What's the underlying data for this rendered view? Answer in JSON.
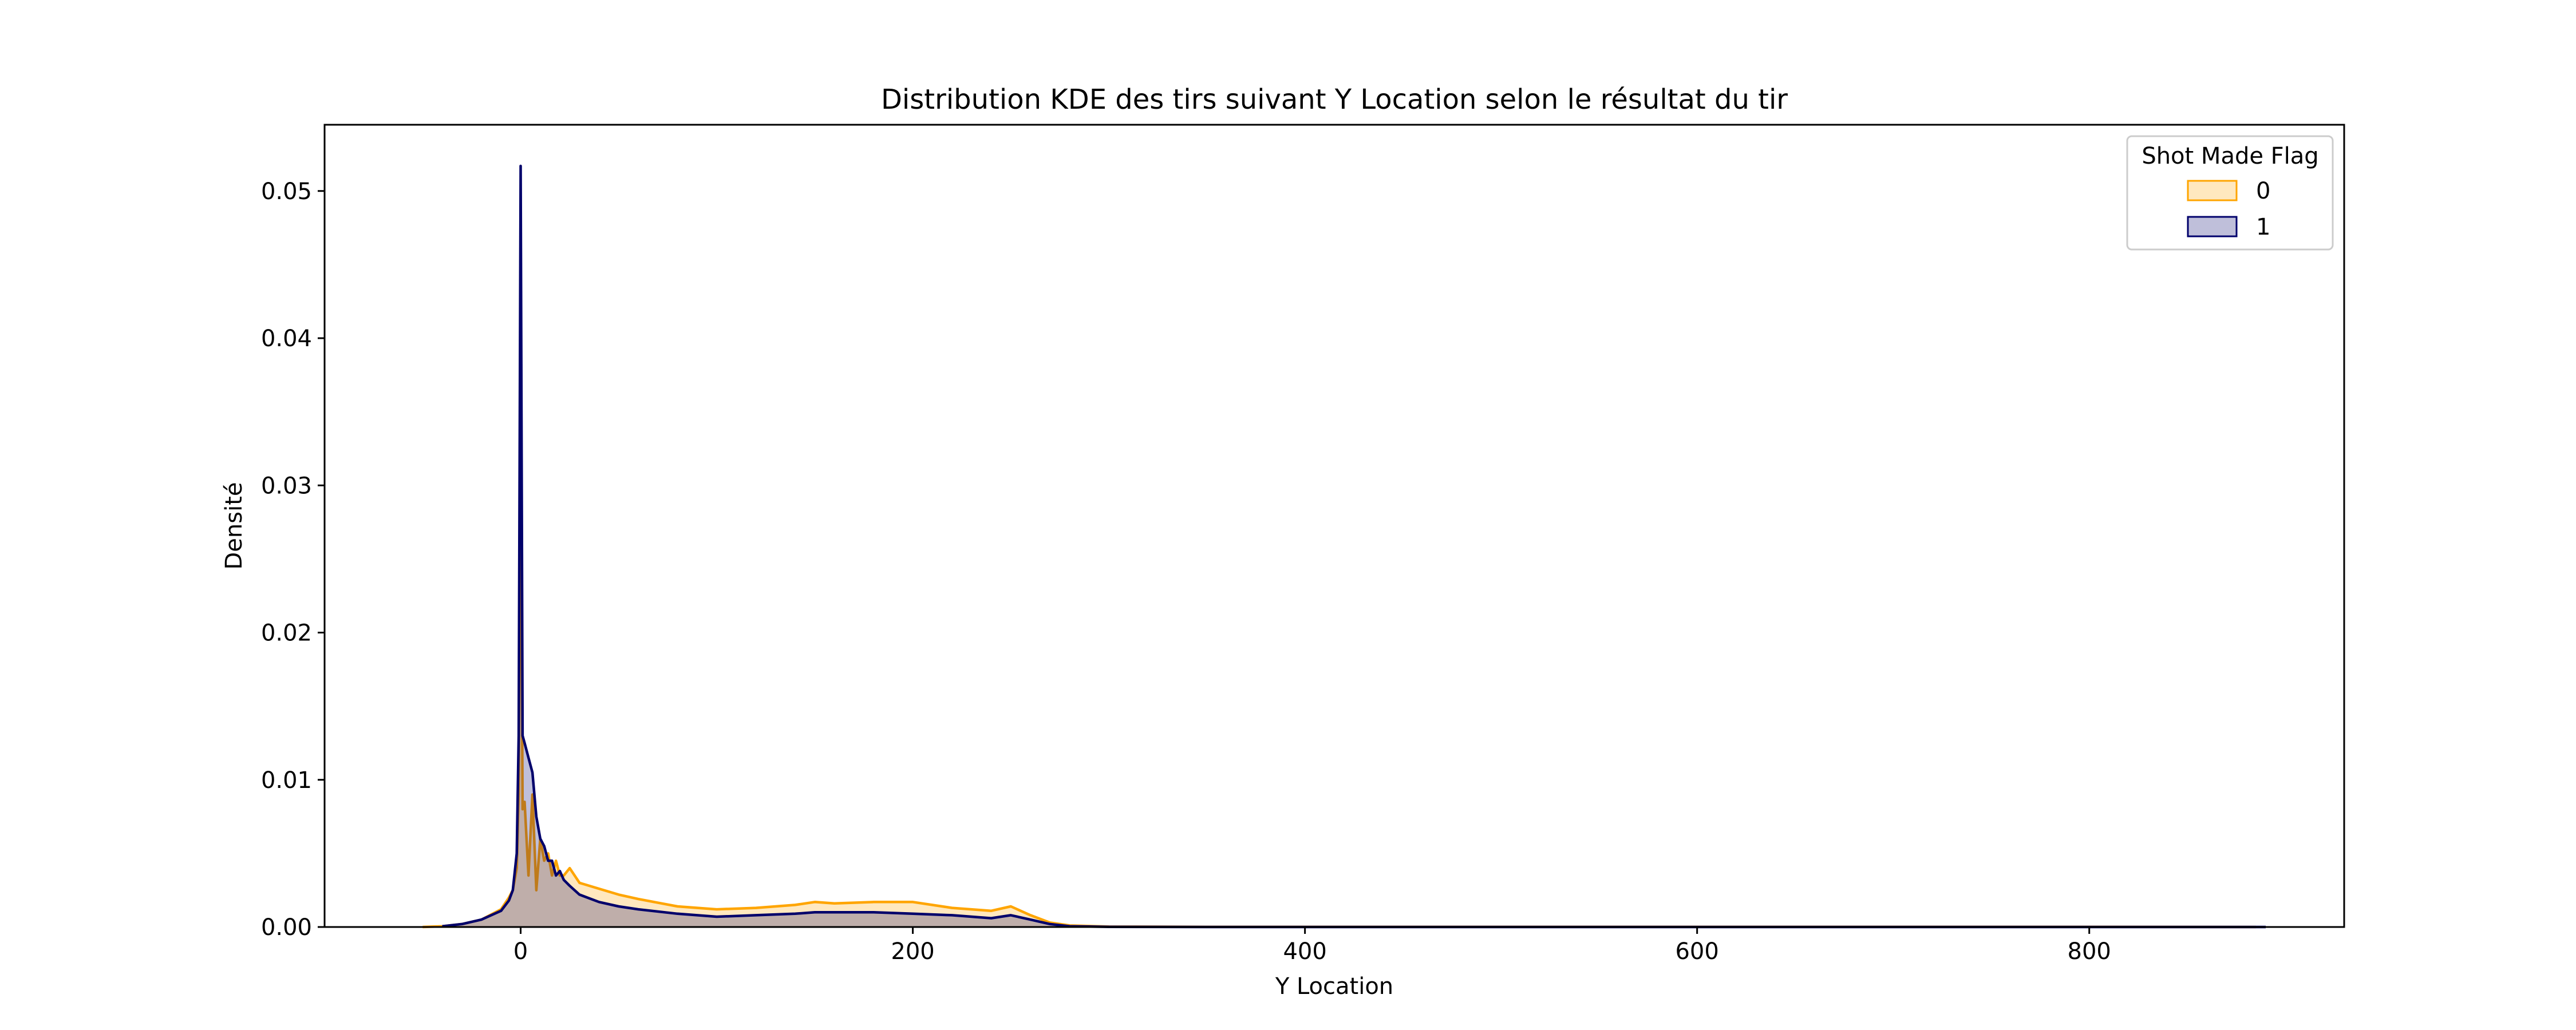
{
  "chart_data": {
    "type": "area",
    "title": "Distribution KDE des tirs suivant Y Location selon le résultat du tir",
    "xlabel": "Y Location",
    "ylabel": "Densité",
    "xlim": [
      -100,
      930
    ],
    "ylim": [
      0,
      0.0545
    ],
    "xticks": [
      0,
      200,
      400,
      600,
      800
    ],
    "xtick_labels": [
      "0",
      "200",
      "400",
      "600",
      "800"
    ],
    "yticks": [
      0,
      0.01,
      0.02,
      0.03,
      0.04,
      0.05
    ],
    "ytick_labels": [
      "0.00",
      "0.01",
      "0.02",
      "0.03",
      "0.04",
      "0.05"
    ],
    "grid": false,
    "legend": {
      "title": "Shot Made Flag",
      "position": "top-right"
    },
    "series": [
      {
        "name": "0",
        "color": "#FFA500",
        "fill_opacity": 0.25,
        "x": [
          -50,
          -40,
          -30,
          -20,
          -10,
          -6,
          -4,
          -2,
          -1,
          0,
          1,
          2,
          4,
          6,
          8,
          10,
          12,
          14,
          16,
          18,
          20,
          22,
          25,
          30,
          40,
          50,
          60,
          80,
          100,
          120,
          140,
          150,
          160,
          180,
          200,
          220,
          240,
          250,
          260,
          270,
          280,
          300,
          350,
          400,
          500,
          600,
          700,
          800,
          885
        ],
        "y": [
          0.0,
          5e-05,
          0.0002,
          0.0005,
          0.0012,
          0.002,
          0.0025,
          0.004,
          0.009,
          0.0355,
          0.008,
          0.0085,
          0.0035,
          0.009,
          0.0025,
          0.006,
          0.0045,
          0.005,
          0.0035,
          0.0045,
          0.0035,
          0.0035,
          0.004,
          0.003,
          0.0026,
          0.0022,
          0.0019,
          0.0014,
          0.0012,
          0.0013,
          0.0015,
          0.0017,
          0.0016,
          0.0017,
          0.0017,
          0.0013,
          0.0011,
          0.0014,
          0.0008,
          0.0003,
          0.0001,
          3e-05,
          1e-05,
          1e-05,
          1e-05,
          1e-05,
          1e-05,
          1e-05,
          0.0
        ]
      },
      {
        "name": "1",
        "color": "#00006B",
        "fill_opacity": 0.25,
        "x": [
          -40,
          -30,
          -20,
          -10,
          -6,
          -4,
          -2,
          -1,
          0,
          1,
          2,
          4,
          6,
          8,
          10,
          12,
          14,
          16,
          18,
          20,
          22,
          25,
          30,
          40,
          50,
          60,
          80,
          100,
          120,
          140,
          150,
          160,
          180,
          200,
          220,
          240,
          250,
          260,
          270,
          280,
          300,
          350,
          400,
          500,
          600,
          700,
          800,
          890
        ],
        "y": [
          5e-05,
          0.0002,
          0.0005,
          0.0011,
          0.0018,
          0.0025,
          0.005,
          0.013,
          0.0517,
          0.013,
          0.0125,
          0.0115,
          0.0105,
          0.0075,
          0.006,
          0.0055,
          0.0045,
          0.0045,
          0.0035,
          0.0038,
          0.0032,
          0.0028,
          0.0022,
          0.0017,
          0.0014,
          0.0012,
          0.0009,
          0.0007,
          0.0008,
          0.0009,
          0.001,
          0.001,
          0.001,
          0.0009,
          0.0008,
          0.0006,
          0.0008,
          0.0005,
          0.0002,
          5e-05,
          1e-05,
          0.0,
          0.0,
          0.0,
          0.0,
          0.0,
          0.0,
          0.0
        ]
      }
    ]
  }
}
